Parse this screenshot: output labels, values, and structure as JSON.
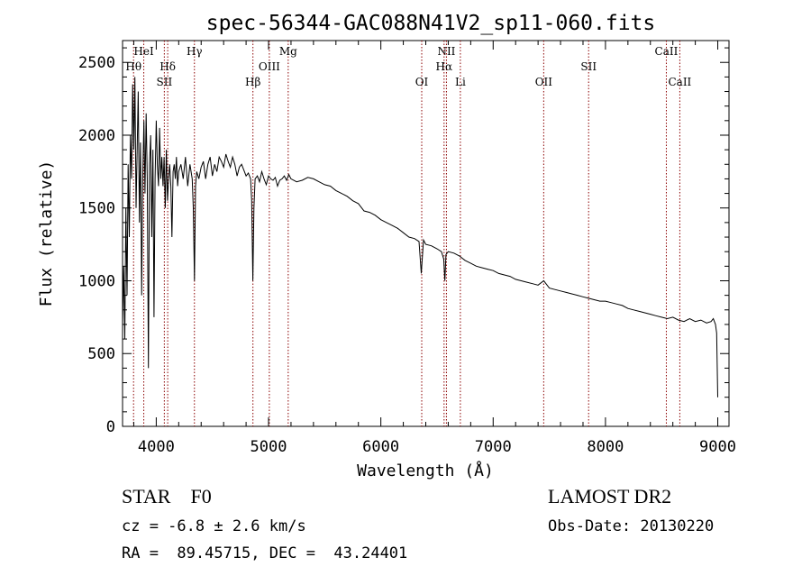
{
  "chart_data": {
    "type": "line",
    "title": "spec-56344-GAC088N41V2_sp11-060.fits",
    "xlabel": "Wavelength (Å)",
    "ylabel": "Flux (relative)",
    "xlim": [
      3700,
      9100
    ],
    "ylim": [
      0,
      2650
    ],
    "xticks": [
      4000,
      5000,
      6000,
      7000,
      8000,
      9000
    ],
    "yticks": [
      0,
      500,
      1000,
      1500,
      2000,
      2500
    ],
    "grid": false,
    "line_color": "#000000",
    "marker_color": "#8b0000",
    "series": [
      {
        "x": [
          3700,
          3710,
          3720,
          3730,
          3740,
          3750,
          3760,
          3770,
          3780,
          3790,
          3800,
          3810,
          3820,
          3830,
          3840,
          3850,
          3860,
          3870,
          3880,
          3890,
          3900,
          3910,
          3920,
          3930,
          3940,
          3950,
          3960,
          3970,
          3980,
          3990,
          4000,
          4010,
          4020,
          4030,
          4040,
          4050,
          4060,
          4070,
          4080,
          4090,
          4100,
          4110,
          4120,
          4130,
          4140,
          4150,
          4160,
          4170,
          4180,
          4190,
          4200,
          4220,
          4240,
          4260,
          4280,
          4300,
          4320,
          4330,
          4340,
          4350,
          4360,
          4380,
          4400,
          4420,
          4440,
          4460,
          4480,
          4500,
          4520,
          4540,
          4560,
          4580,
          4600,
          4620,
          4640,
          4660,
          4680,
          4700,
          4720,
          4740,
          4760,
          4780,
          4800,
          4820,
          4840,
          4850,
          4860,
          4870,
          4880,
          4900,
          4920,
          4940,
          4960,
          4980,
          5000,
          5020,
          5040,
          5060,
          5080,
          5100,
          5120,
          5140,
          5160,
          5180,
          5200,
          5250,
          5300,
          5350,
          5400,
          5450,
          5500,
          5550,
          5600,
          5650,
          5700,
          5750,
          5800,
          5850,
          5900,
          5950,
          6000,
          6050,
          6100,
          6150,
          6200,
          6250,
          6300,
          6340,
          6360,
          6380,
          6400,
          6450,
          6500,
          6540,
          6560,
          6570,
          6580,
          6600,
          6650,
          6700,
          6750,
          6800,
          6850,
          6900,
          6950,
          7000,
          7050,
          7100,
          7150,
          7200,
          7250,
          7300,
          7350,
          7400,
          7450,
          7500,
          7550,
          7600,
          7650,
          7700,
          7750,
          7800,
          7850,
          7900,
          7950,
          8000,
          8050,
          8100,
          8150,
          8200,
          8250,
          8300,
          8350,
          8400,
          8450,
          8500,
          8550,
          8600,
          8650,
          8700,
          8750,
          8800,
          8850,
          8900,
          8940,
          8960,
          8980,
          8990,
          9000
        ],
        "values": [
          700,
          1100,
          600,
          1500,
          900,
          1800,
          1300,
          2000,
          1700,
          2350,
          1900,
          2400,
          1500,
          1900,
          2300,
          1400,
          1950,
          900,
          1700,
          2100,
          1600,
          2150,
          1700,
          400,
          1800,
          2000,
          1300,
          1900,
          750,
          1700,
          2100,
          1800,
          1650,
          2050,
          1700,
          1850,
          1650,
          1850,
          1500,
          1900,
          1550,
          1700,
          1800,
          1650,
          1300,
          1750,
          1800,
          1700,
          1850,
          1650,
          1750,
          1800,
          1700,
          1850,
          1650,
          1800,
          1700,
          1500,
          1000,
          1650,
          1750,
          1700,
          1780,
          1820,
          1700,
          1800,
          1850,
          1720,
          1800,
          1750,
          1850,
          1820,
          1780,
          1870,
          1820,
          1780,
          1850,
          1800,
          1720,
          1780,
          1800,
          1760,
          1720,
          1740,
          1700,
          1550,
          1000,
          1500,
          1700,
          1720,
          1680,
          1750,
          1700,
          1660,
          1720,
          1700,
          1690,
          1710,
          1650,
          1690,
          1700,
          1720,
          1690,
          1730,
          1700,
          1680,
          1690,
          1710,
          1700,
          1680,
          1660,
          1650,
          1620,
          1600,
          1580,
          1550,
          1530,
          1480,
          1470,
          1450,
          1420,
          1400,
          1380,
          1360,
          1330,
          1300,
          1290,
          1270,
          1050,
          1280,
          1250,
          1240,
          1220,
          1200,
          1150,
          1000,
          1180,
          1200,
          1190,
          1170,
          1140,
          1120,
          1100,
          1090,
          1080,
          1070,
          1050,
          1040,
          1030,
          1010,
          1000,
          990,
          980,
          970,
          1000,
          950,
          940,
          930,
          920,
          910,
          900,
          890,
          880,
          870,
          860,
          860,
          850,
          840,
          830,
          810,
          800,
          790,
          780,
          770,
          760,
          750,
          740,
          750,
          730,
          720,
          740,
          720,
          730,
          710,
          720,
          740,
          700,
          640,
          200
        ]
      }
    ],
    "line_markers": [
      {
        "label": "Hθ",
        "wavelength": 3798,
        "row": 2
      },
      {
        "label": "HeI",
        "wavelength": 3889,
        "row": 1
      },
      {
        "label": "Hδ",
        "wavelength": 4102,
        "row": 2
      },
      {
        "label": "SII",
        "wavelength": 4072,
        "row": 3
      },
      {
        "label": "Hγ",
        "wavelength": 4340,
        "row": 1
      },
      {
        "label": "Hβ",
        "wavelength": 4861,
        "row": 3
      },
      {
        "label": "OIII",
        "wavelength": 5007,
        "row": 2
      },
      {
        "label": "Mg",
        "wavelength": 5175,
        "row": 1
      },
      {
        "label": "OI",
        "wavelength": 6364,
        "row": 3
      },
      {
        "label": "NII",
        "wavelength": 6584,
        "row": 1
      },
      {
        "label": "Hα",
        "wavelength": 6563,
        "row": 2
      },
      {
        "label": "Li",
        "wavelength": 6708,
        "row": 3
      },
      {
        "label": "OII",
        "wavelength": 7450,
        "row": 3
      },
      {
        "label": "SII",
        "wavelength": 7850,
        "row": 2
      },
      {
        "label": "CaII",
        "wavelength": 8542,
        "row": 1
      },
      {
        "label": "CaII",
        "wavelength": 8662,
        "row": 3
      }
    ]
  },
  "footer": {
    "object_class": "STAR    F0",
    "survey": "LAMOST DR2",
    "cz": "cz = -6.8 ± 2.6 km/s",
    "obs_date": "Obs-Date: 20130220",
    "radec": "RA =  89.45715, DEC =  43.24401"
  }
}
